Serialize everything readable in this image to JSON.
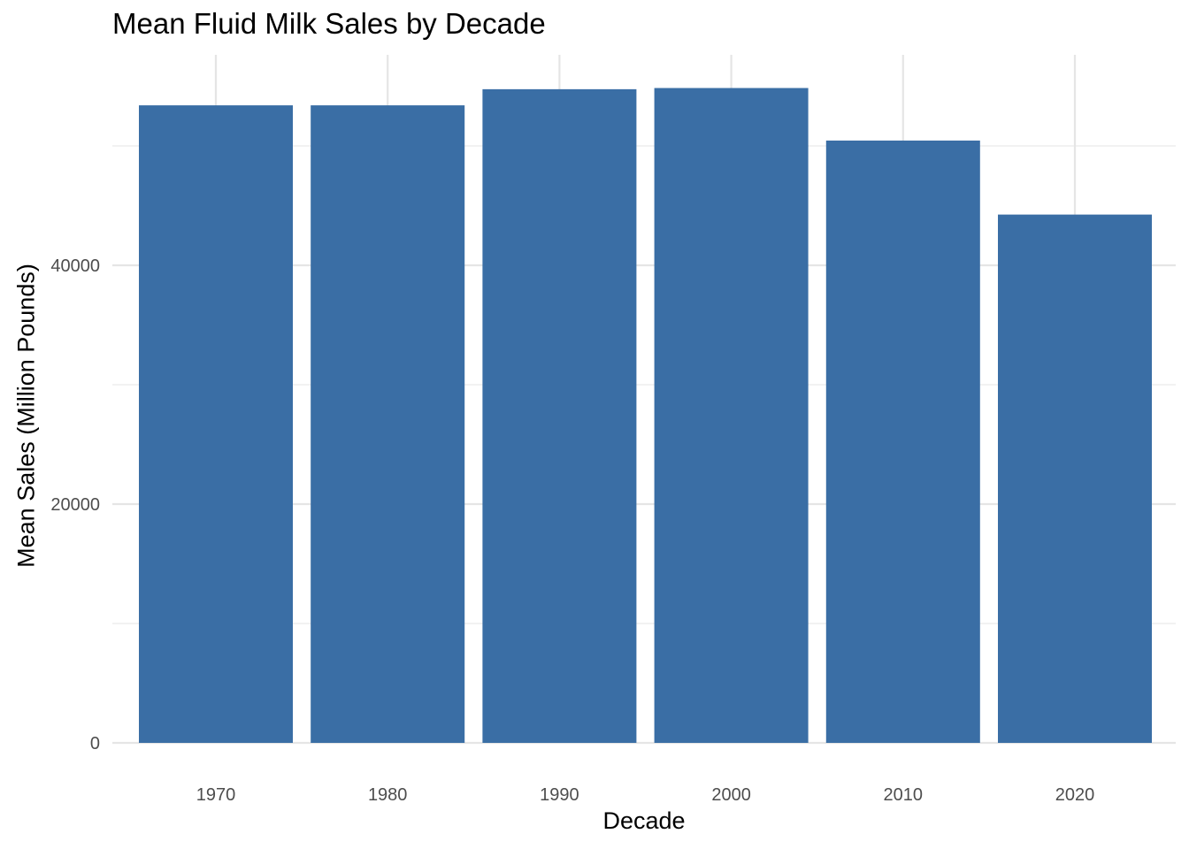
{
  "chart_data": {
    "type": "bar",
    "title": "Mean Fluid Milk Sales by Decade",
    "xlabel": "Decade",
    "ylabel": "Mean Sales (Million Pounds)",
    "categories": [
      "1970",
      "1980",
      "1990",
      "2000",
      "2010",
      "2020"
    ],
    "values": [
      53400,
      53400,
      54750,
      54850,
      50450,
      44250
    ],
    "ylim": [
      0,
      57700
    ],
    "yticks": [
      0,
      20000,
      40000
    ],
    "yticks_labels": [
      "0",
      "20000",
      "40000"
    ],
    "minor_yticks": [
      10000,
      30000,
      50000
    ],
    "bar_color": "#3A6EA5",
    "grid": true,
    "legend": "none"
  }
}
